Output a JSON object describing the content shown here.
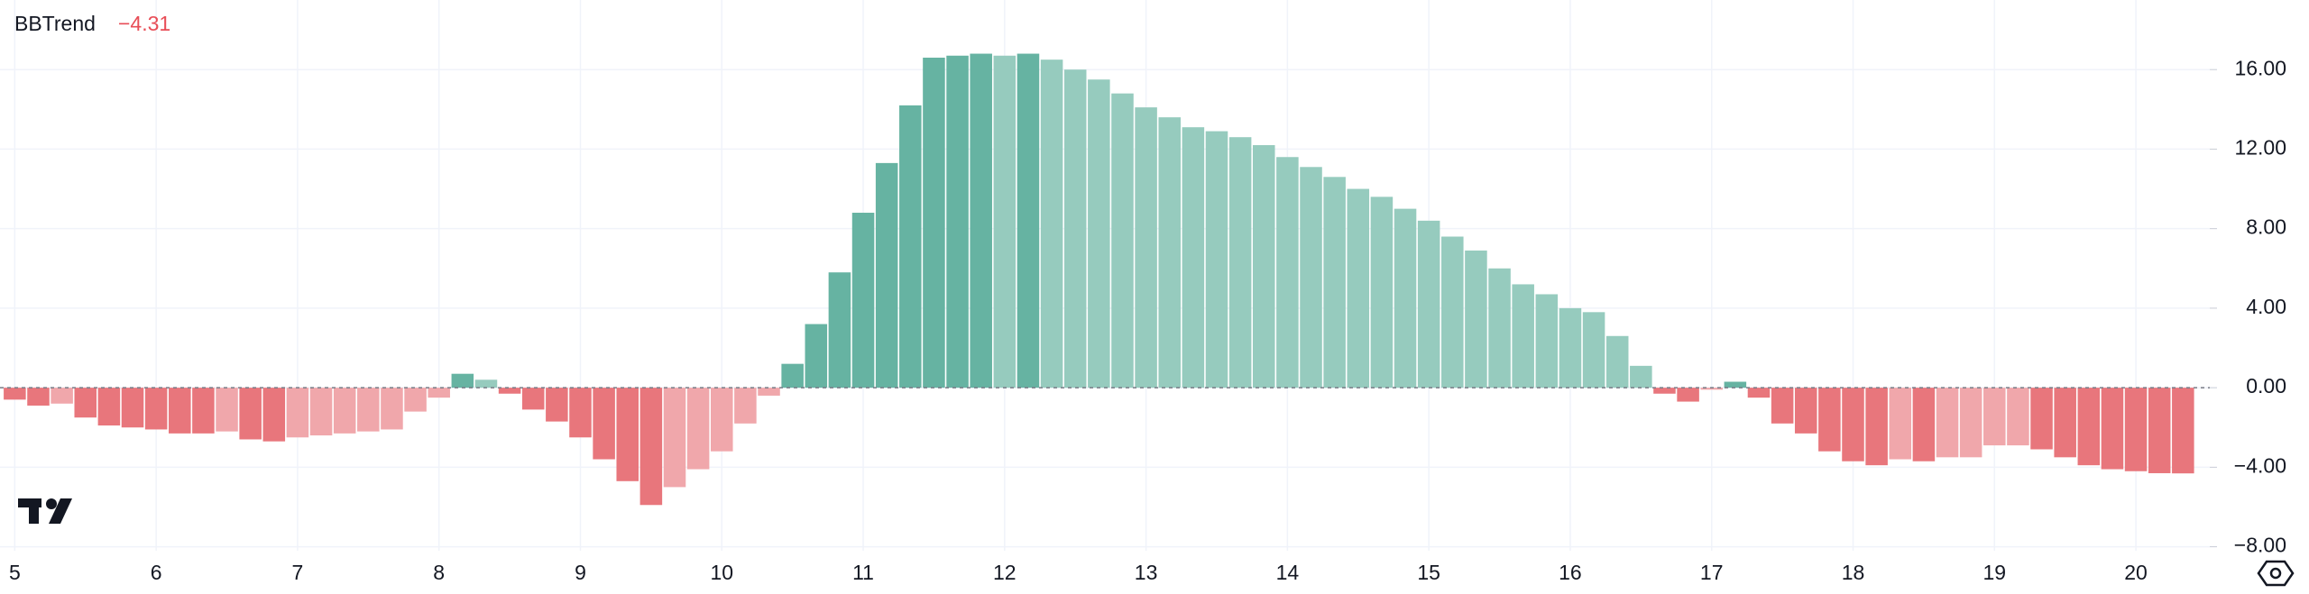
{
  "chart_data": {
    "type": "bar",
    "title": "BBTrend",
    "last_value": {
      "value": -4.31,
      "label": "−4.31"
    },
    "categories": [
      "5",
      null,
      null,
      null,
      null,
      null,
      "6",
      null,
      null,
      null,
      null,
      null,
      "7",
      null,
      null,
      null,
      null,
      null,
      "8",
      null,
      null,
      null,
      null,
      null,
      "9",
      null,
      null,
      null,
      null,
      null,
      "10",
      null,
      null,
      null,
      null,
      null,
      "11",
      null,
      null,
      null,
      null,
      null,
      "12",
      null,
      null,
      null,
      null,
      null,
      "13",
      null,
      null,
      null,
      null,
      null,
      "14",
      null,
      null,
      null,
      null,
      null,
      "15",
      null,
      null,
      null,
      null,
      null,
      "16",
      null,
      null,
      null,
      null,
      null,
      "17",
      null,
      null,
      null,
      null,
      null,
      "18",
      null,
      null,
      null,
      null,
      null,
      "19",
      null,
      null,
      null,
      null,
      null,
      "20",
      null,
      null
    ],
    "values": [
      -0.6,
      -0.9,
      -0.8,
      -1.5,
      -1.9,
      -2.0,
      -2.1,
      -2.3,
      -2.3,
      -2.2,
      -2.6,
      -2.7,
      -2.5,
      -2.4,
      -2.3,
      -2.2,
      -2.1,
      -1.2,
      -0.5,
      0.7,
      0.4,
      -0.3,
      -1.1,
      -1.7,
      -2.5,
      -3.6,
      -4.7,
      -5.9,
      -5.0,
      -4.1,
      -3.2,
      -1.8,
      -0.4,
      1.2,
      3.2,
      5.8,
      8.8,
      11.3,
      14.2,
      16.6,
      16.7,
      16.8,
      16.7,
      16.8,
      16.5,
      16.0,
      15.5,
      14.8,
      14.1,
      13.6,
      13.1,
      12.9,
      12.6,
      12.2,
      11.6,
      11.1,
      10.6,
      10.0,
      9.6,
      9.0,
      8.4,
      7.6,
      6.9,
      6.0,
      5.2,
      4.7,
      4.0,
      3.8,
      2.6,
      1.1,
      -0.3,
      -0.7,
      -0.1,
      0.3,
      -0.5,
      -1.8,
      -2.3,
      -3.2,
      -3.7,
      -3.9,
      -3.6,
      -3.7,
      -3.5,
      -3.5,
      -2.9,
      -2.9,
      -3.1,
      -3.5,
      -3.9,
      -4.1,
      -4.2,
      -4.3,
      -4.31
    ],
    "colors": [
      "#e8767c",
      "#e8767c",
      "#f0a7ab",
      "#e8767c",
      "#e8767c",
      "#e8767c",
      "#e8767c",
      "#e8767c",
      "#e8767c",
      "#f0a7ab",
      "#e8767c",
      "#e8767c",
      "#f0a7ab",
      "#f0a7ab",
      "#f0a7ab",
      "#f0a7ab",
      "#f0a7ab",
      "#f0a7ab",
      "#f0a7ab",
      "#66b3a2",
      "#96cbbe",
      "#e8767c",
      "#e8767c",
      "#e8767c",
      "#e8767c",
      "#e8767c",
      "#e8767c",
      "#e8767c",
      "#f0a7ab",
      "#f0a7ab",
      "#f0a7ab",
      "#f0a7ab",
      "#f0a7ab",
      "#66b3a2",
      "#66b3a2",
      "#66b3a2",
      "#66b3a2",
      "#66b3a2",
      "#66b3a2",
      "#66b3a2",
      "#66b3a2",
      "#66b3a2",
      "#96cbbe",
      "#66b3a2",
      "#96cbbe",
      "#96cbbe",
      "#96cbbe",
      "#96cbbe",
      "#96cbbe",
      "#96cbbe",
      "#96cbbe",
      "#96cbbe",
      "#96cbbe",
      "#96cbbe",
      "#96cbbe",
      "#96cbbe",
      "#96cbbe",
      "#96cbbe",
      "#96cbbe",
      "#96cbbe",
      "#96cbbe",
      "#96cbbe",
      "#96cbbe",
      "#96cbbe",
      "#96cbbe",
      "#96cbbe",
      "#96cbbe",
      "#96cbbe",
      "#96cbbe",
      "#96cbbe",
      "#e8767c",
      "#e8767c",
      "#f0a7ab",
      "#66b3a2",
      "#e8767c",
      "#e8767c",
      "#e8767c",
      "#e8767c",
      "#e8767c",
      "#e8767c",
      "#f0a7ab",
      "#e8767c",
      "#f0a7ab",
      "#f0a7ab",
      "#f0a7ab",
      "#f0a7ab",
      "#e8767c",
      "#e8767c",
      "#e8767c",
      "#e8767c",
      "#e8767c",
      "#e8767c",
      "#e8767c"
    ],
    "ylim": [
      -8.2,
      19.5
    ],
    "yticks": [
      {
        "value": 16,
        "label": "16.00"
      },
      {
        "value": 12,
        "label": "12.00"
      },
      {
        "value": 8,
        "label": "8.00"
      },
      {
        "value": 4,
        "label": "4.00"
      },
      {
        "value": 0,
        "label": "0.00"
      },
      {
        "value": -4,
        "label": "−4.00"
      },
      {
        "value": -8,
        "label": "−8.00"
      }
    ],
    "grid": true
  }
}
